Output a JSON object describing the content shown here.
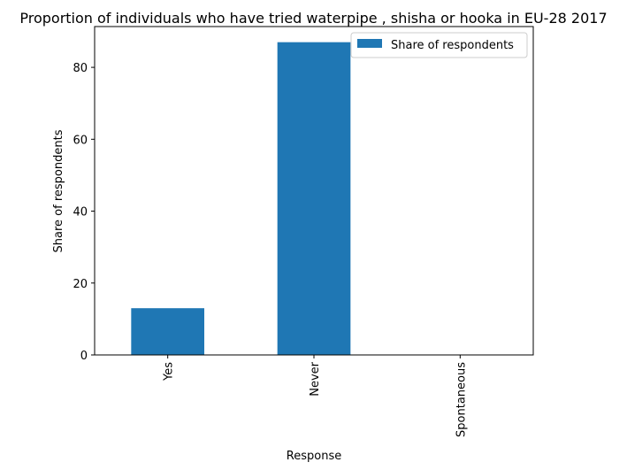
{
  "chart_data": {
    "type": "bar",
    "title": "Proportion of individuals who have tried waterpipe , shisha or hooka in EU-28 2017",
    "xlabel": "Response",
    "ylabel": "Share of respondents",
    "categories": [
      "Yes",
      "Never",
      "Spontaneous"
    ],
    "series": [
      {
        "name": "Share of respondents",
        "values": [
          13,
          87,
          0
        ]
      }
    ],
    "ylim": [
      0,
      91.35
    ],
    "yticks": [
      0,
      20,
      40,
      60,
      80
    ],
    "grid": false,
    "legend_position": "top-right",
    "bar_color": "#1f77b4"
  }
}
